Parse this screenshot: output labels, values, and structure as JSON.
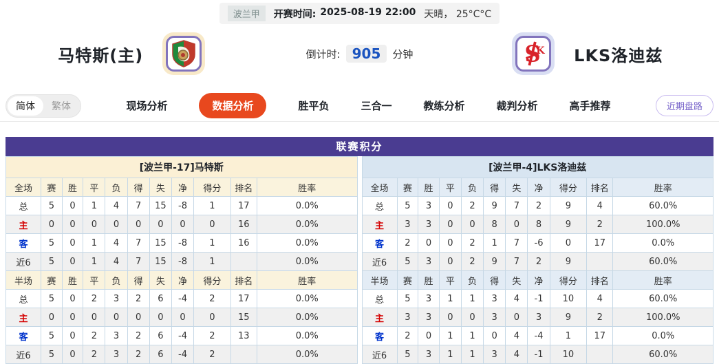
{
  "top_bar": {
    "league": "波兰甲",
    "kickoff_label": "开赛时间:",
    "kickoff_time": "2025-08-19 22:00",
    "weather": "天晴， 25°C°C"
  },
  "match_header": {
    "home_name": "马特斯(主)",
    "away_name": "LKS洛迪兹",
    "home_badge_icon": "shield-crest-icon",
    "away_badge_icon": "lks-monogram-icon",
    "countdown_label": "倒计时:",
    "countdown_value": "905",
    "countdown_unit": "分钟"
  },
  "lang_toggle": {
    "simplified": "简体",
    "traditional": "繁体",
    "active": "简体"
  },
  "nav": {
    "tabs": [
      {
        "label": "现场分析",
        "active": false
      },
      {
        "label": "数据分析",
        "active": true
      },
      {
        "label": "胜平负",
        "active": false
      },
      {
        "label": "三合一",
        "active": false
      },
      {
        "label": "教练分析",
        "active": false
      },
      {
        "label": "裁判分析",
        "active": false
      },
      {
        "label": "高手推荐",
        "active": false
      }
    ],
    "recent_button": "近期盘路"
  },
  "league_table": {
    "title": "联赛积分",
    "sides": [
      {
        "id": "home",
        "theme": "cream",
        "team_header": "[波兰甲-17]马特斯",
        "sections": [
          {
            "columns": [
              "全场",
              "赛",
              "胜",
              "平",
              "负",
              "得",
              "失",
              "净",
              "得分",
              "排名",
              "胜率"
            ],
            "rows": [
              {
                "label": "总",
                "type": "total",
                "values": [
                  "5",
                  "0",
                  "1",
                  "4",
                  "7",
                  "15",
                  "-8",
                  "1",
                  "17",
                  "0.0%"
                ]
              },
              {
                "label": "主",
                "type": "home",
                "values": [
                  "0",
                  "0",
                  "0",
                  "0",
                  "0",
                  "0",
                  "0",
                  "0",
                  "16",
                  "0.0%"
                ]
              },
              {
                "label": "客",
                "type": "away",
                "values": [
                  "5",
                  "0",
                  "1",
                  "4",
                  "7",
                  "15",
                  "-8",
                  "1",
                  "16",
                  "0.0%"
                ]
              },
              {
                "label": "近6",
                "type": "recent",
                "values": [
                  "5",
                  "0",
                  "1",
                  "4",
                  "7",
                  "15",
                  "-8",
                  "1",
                  "",
                  "0.0%"
                ]
              }
            ]
          },
          {
            "columns": [
              "半场",
              "赛",
              "胜",
              "平",
              "负",
              "得",
              "失",
              "净",
              "得分",
              "排名",
              "胜率"
            ],
            "rows": [
              {
                "label": "总",
                "type": "total",
                "values": [
                  "5",
                  "0",
                  "2",
                  "3",
                  "2",
                  "6",
                  "-4",
                  "2",
                  "17",
                  "0.0%"
                ]
              },
              {
                "label": "主",
                "type": "home",
                "values": [
                  "0",
                  "0",
                  "0",
                  "0",
                  "0",
                  "0",
                  "0",
                  "0",
                  "15",
                  "0.0%"
                ]
              },
              {
                "label": "客",
                "type": "away",
                "values": [
                  "5",
                  "0",
                  "2",
                  "3",
                  "2",
                  "6",
                  "-4",
                  "2",
                  "13",
                  "0.0%"
                ]
              },
              {
                "label": "近6",
                "type": "recent",
                "values": [
                  "5",
                  "0",
                  "2",
                  "3",
                  "2",
                  "6",
                  "-4",
                  "2",
                  "",
                  "0.0%"
                ]
              }
            ]
          }
        ]
      },
      {
        "id": "away",
        "theme": "blue",
        "team_header": "[波兰甲-4]LKS洛迪兹",
        "sections": [
          {
            "columns": [
              "全场",
              "赛",
              "胜",
              "平",
              "负",
              "得",
              "失",
              "净",
              "得分",
              "排名",
              "胜率"
            ],
            "rows": [
              {
                "label": "总",
                "type": "total",
                "values": [
                  "5",
                  "3",
                  "0",
                  "2",
                  "9",
                  "7",
                  "2",
                  "9",
                  "4",
                  "60.0%"
                ]
              },
              {
                "label": "主",
                "type": "home",
                "values": [
                  "3",
                  "3",
                  "0",
                  "0",
                  "8",
                  "0",
                  "8",
                  "9",
                  "2",
                  "100.0%"
                ]
              },
              {
                "label": "客",
                "type": "away",
                "values": [
                  "2",
                  "0",
                  "0",
                  "2",
                  "1",
                  "7",
                  "-6",
                  "0",
                  "17",
                  "0.0%"
                ]
              },
              {
                "label": "近6",
                "type": "recent",
                "values": [
                  "5",
                  "3",
                  "0",
                  "2",
                  "9",
                  "7",
                  "2",
                  "9",
                  "",
                  "60.0%"
                ]
              }
            ]
          },
          {
            "columns": [
              "半场",
              "赛",
              "胜",
              "平",
              "负",
              "得",
              "失",
              "净",
              "得分",
              "排名",
              "胜率"
            ],
            "rows": [
              {
                "label": "总",
                "type": "total",
                "values": [
                  "5",
                  "3",
                  "1",
                  "1",
                  "3",
                  "4",
                  "-1",
                  "10",
                  "4",
                  "60.0%"
                ]
              },
              {
                "label": "主",
                "type": "home",
                "values": [
                  "3",
                  "3",
                  "0",
                  "0",
                  "3",
                  "0",
                  "3",
                  "9",
                  "2",
                  "100.0%"
                ]
              },
              {
                "label": "客",
                "type": "away",
                "values": [
                  "2",
                  "0",
                  "1",
                  "1",
                  "0",
                  "4",
                  "-4",
                  "1",
                  "17",
                  "0.0%"
                ]
              },
              {
                "label": "近6",
                "type": "recent",
                "values": [
                  "5",
                  "3",
                  "1",
                  "1",
                  "3",
                  "4",
                  "-1",
                  "10",
                  "",
                  "60.0%"
                ]
              }
            ]
          }
        ]
      }
    ]
  },
  "colors": {
    "title_purple": "#4a3c91",
    "active_tab_orange": "#e8481e",
    "home_row_red": "#d40000",
    "away_row_blue": "#0033cc",
    "countdown_blue": "#1b54c0",
    "home_panel_cream": "#fbf0d5",
    "away_panel_blue": "#d8e5f1",
    "table_border": "#c6d8e6"
  }
}
